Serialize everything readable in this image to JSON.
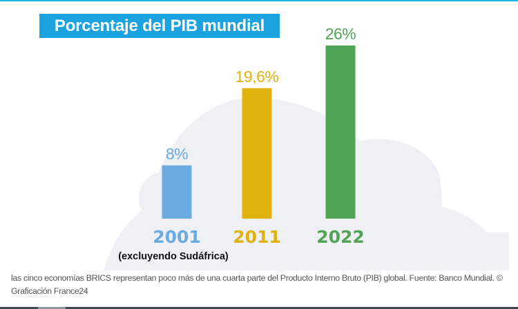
{
  "title": "Porcentaje del PIB mundial",
  "caption": "las cinco economías BRICS representan poco más de una cuarta parte del Producto Interno Bruto (PIB) global. Fuente: Banco Mundial. © Graficación France24",
  "colors": {
    "title_bg": "#1ba3e0",
    "cloud": "#eef0f4",
    "bar_2001": "#6aace0",
    "bar_2011": "#e0b20e",
    "bar_2022": "#4fa455",
    "note": "#111111"
  },
  "chart_data": {
    "type": "bar",
    "title": "Porcentaje del PIB mundial",
    "categories": [
      "2001",
      "2011",
      "2022"
    ],
    "values": [
      8,
      19.6,
      26
    ],
    "data_labels": [
      "8%",
      "19,6%",
      "26%"
    ],
    "category_note": "(excluyendo Sudáfrica)",
    "xlabel": "",
    "ylabel": "",
    "ylim": [
      0,
      26
    ],
    "grid": false,
    "legend": "none"
  }
}
